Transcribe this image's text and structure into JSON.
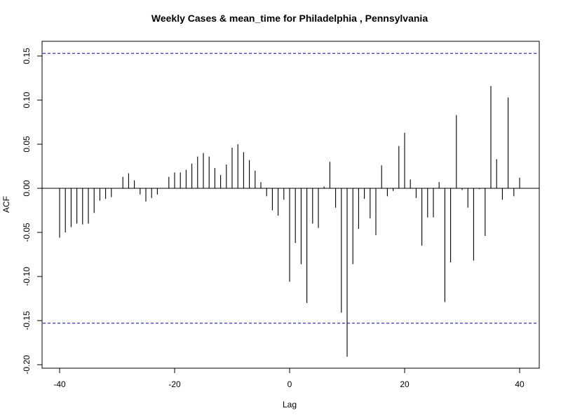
{
  "chart_data": {
    "type": "bar",
    "title": "Weekly Cases & mean_time for Philadelphia , Pennsylvania",
    "xlabel": "Lag",
    "ylabel": "ACF",
    "xlim": [
      -42,
      43
    ],
    "ylim": [
      -0.2,
      0.165
    ],
    "x_ticks": [
      -40,
      -20,
      0,
      20,
      40
    ],
    "x_tick_labels": [
      "-40",
      "-20",
      "0",
      "20",
      "40"
    ],
    "y_ticks": [
      -0.2,
      -0.15,
      -0.1,
      -0.05,
      0.0,
      0.05,
      0.1,
      0.15
    ],
    "y_tick_labels": [
      "-0.20",
      "-0.15",
      "-0.10",
      "-0.05",
      "0.00",
      "0.05",
      "0.10",
      "0.15"
    ],
    "confidence_band": 0.153,
    "confidence_color": "#0000cc",
    "bar_color": "#000000",
    "lags": [
      -40,
      -39,
      -38,
      -37,
      -36,
      -35,
      -34,
      -33,
      -32,
      -31,
      -30,
      -29,
      -28,
      -27,
      -26,
      -25,
      -24,
      -23,
      -22,
      -21,
      -20,
      -19,
      -18,
      -17,
      -16,
      -15,
      -14,
      -13,
      -12,
      -11,
      -10,
      -9,
      -8,
      -7,
      -6,
      -5,
      -4,
      -3,
      -2,
      -1,
      0,
      1,
      2,
      3,
      4,
      5,
      6,
      7,
      8,
      9,
      10,
      11,
      12,
      13,
      14,
      15,
      16,
      17,
      18,
      19,
      20,
      21,
      22,
      23,
      24,
      25,
      26,
      27,
      28,
      29,
      30,
      31,
      32,
      33,
      34,
      35,
      36,
      37,
      38,
      39,
      40
    ],
    "values": [
      -0.056,
      -0.05,
      -0.044,
      -0.04,
      -0.041,
      -0.04,
      -0.028,
      -0.014,
      -0.012,
      -0.01,
      0.0,
      0.013,
      0.017,
      0.009,
      -0.007,
      -0.015,
      -0.011,
      -0.007,
      0.0,
      0.013,
      0.018,
      0.018,
      0.021,
      0.028,
      0.036,
      0.04,
      0.036,
      0.023,
      0.015,
      0.027,
      0.046,
      0.05,
      0.041,
      0.032,
      0.02,
      0.007,
      -0.009,
      -0.025,
      -0.031,
      -0.013,
      -0.106,
      -0.062,
      -0.086,
      -0.13,
      -0.04,
      -0.045,
      0.002,
      0.03,
      -0.022,
      -0.141,
      -0.191,
      -0.086,
      -0.046,
      -0.012,
      -0.034,
      -0.053,
      0.026,
      -0.009,
      -0.003,
      0.048,
      0.063,
      0.01,
      -0.011,
      -0.065,
      -0.033,
      -0.033,
      0.007,
      -0.129,
      -0.084,
      0.083,
      -0.002,
      -0.022,
      -0.082,
      -0.001,
      -0.054,
      0.116,
      0.033,
      -0.013,
      0.103,
      -0.009,
      0.012
    ]
  }
}
